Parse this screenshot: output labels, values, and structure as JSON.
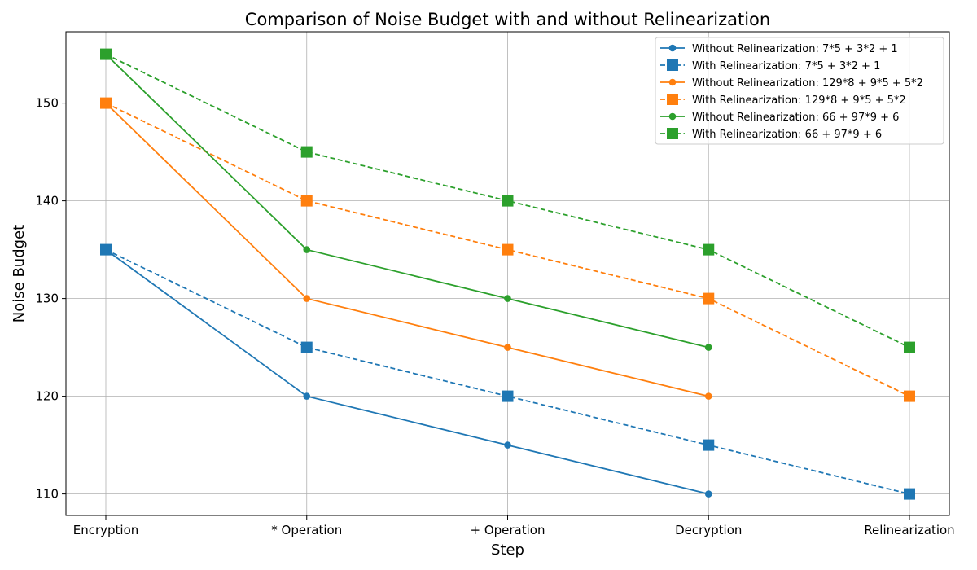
{
  "chart_data": {
    "type": "line",
    "title": "Comparison of Noise Budget with and without Relinearization",
    "xlabel": "Step",
    "ylabel": "Noise Budget",
    "categories": [
      "Encryption",
      "* Operation",
      "+ Operation",
      "Decryption",
      "Relinearization"
    ],
    "ylim": [
      107.8,
      157.3
    ],
    "yticks": [
      110,
      120,
      130,
      140,
      150
    ],
    "grid": true,
    "legend_position": "top-right",
    "series": [
      {
        "name": "Without Relinearization: 7*5 + 3*2 + 1",
        "values": [
          135,
          120,
          115,
          110,
          null
        ],
        "color": "#1f77b4",
        "line_style": "solid",
        "marker": "circle"
      },
      {
        "name": "With Relinearization: 7*5 + 3*2 + 1",
        "values": [
          135,
          125,
          120,
          115,
          110
        ],
        "color": "#1f77b4",
        "line_style": "dashed",
        "marker": "square"
      },
      {
        "name": "Without Relinearization: 129*8 + 9*5 + 5*2",
        "values": [
          150,
          130,
          125,
          120,
          null
        ],
        "color": "#ff7f0e",
        "line_style": "solid",
        "marker": "circle"
      },
      {
        "name": "With Relinearization: 129*8 + 9*5 + 5*2",
        "values": [
          150,
          140,
          135,
          130,
          120
        ],
        "color": "#ff7f0e",
        "line_style": "dashed",
        "marker": "square"
      },
      {
        "name": "Without Relinearization: 66 + 97*9 + 6",
        "values": [
          155,
          135,
          130,
          125,
          null
        ],
        "color": "#2ca02c",
        "line_style": "solid",
        "marker": "circle"
      },
      {
        "name": "With Relinearization: 66 + 97*9 + 6",
        "values": [
          155,
          145,
          140,
          135,
          125
        ],
        "color": "#2ca02c",
        "line_style": "dashed",
        "marker": "square"
      }
    ]
  }
}
